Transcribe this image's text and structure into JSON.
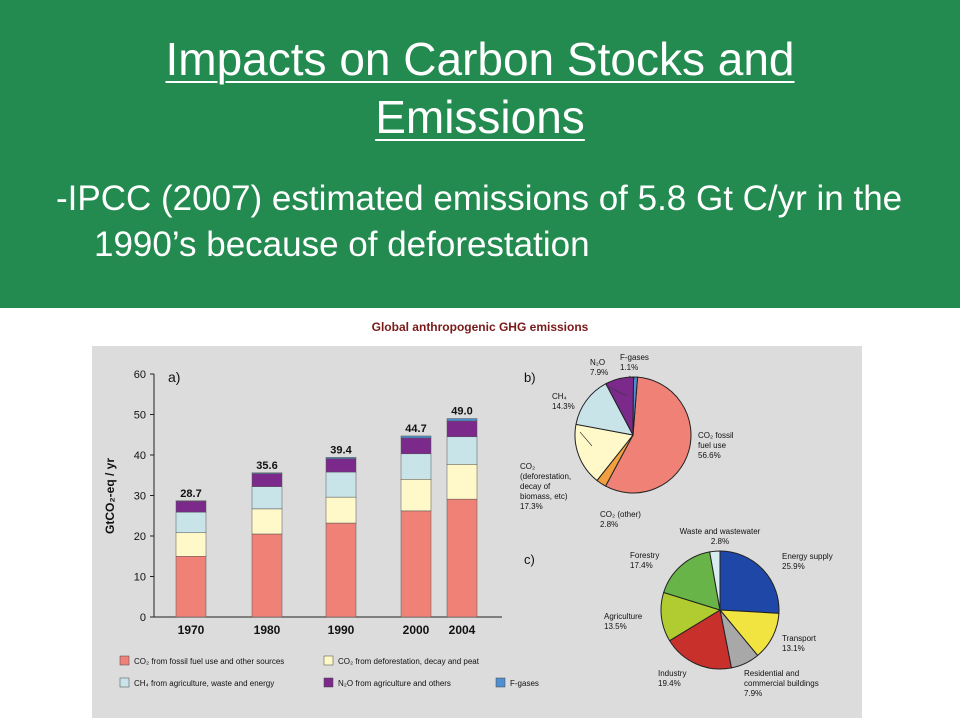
{
  "slide": {
    "title_line1": "Impacts on Carbon Stocks and",
    "title_line2": "Emissions",
    "bullet": "-IPCC (2007) estimated emissions of 5.8 Gt C/yr in the 1990’s because of deforestation"
  },
  "figure_title": "Global anthropogenic GHG emissions",
  "colors": {
    "fossil": "#ef8176",
    "deforest": "#fff8c8",
    "ch4": "#c8e4e8",
    "n2o": "#7b2a8c",
    "fgas": "#4f8fd0",
    "energy": "#1f47a8",
    "transport": "#f2e440",
    "buildings": "#a8a8a8",
    "industry": "#c8302c",
    "agriculture": "#b0cc30",
    "forestry": "#68b448",
    "waste": "#d8ecf0"
  },
  "chart_data": [
    {
      "type": "bar",
      "panel_label": "a)",
      "ylabel": "GtCO₂-eq / yr",
      "ylim": [
        0,
        60
      ],
      "yticks": [
        "0",
        "10",
        "20",
        "30",
        "40",
        "50",
        "60"
      ],
      "categories": [
        "1970",
        "1980",
        "1990",
        "2000",
        "2004"
      ],
      "series": [
        {
          "name": "CO₂ from fossil fuel use and other sources",
          "values": [
            15,
            20.5,
            23.2,
            26.2,
            29.1
          ]
        },
        {
          "name": "CO₂ from deforestation, decay and peat",
          "values": [
            5.8,
            6.2,
            6.4,
            7.8,
            8.6
          ]
        },
        {
          "name": "CH₄ from agriculture, waste and energy",
          "values": [
            5.1,
            5.5,
            6.2,
            6.3,
            6.8
          ]
        },
        {
          "name": "N₂O from agriculture and others",
          "values": [
            2.7,
            3.2,
            3.3,
            3.9,
            3.9
          ]
        },
        {
          "name": "F-gases",
          "values": [
            0.1,
            0.2,
            0.3,
            0.5,
            0.6
          ]
        }
      ],
      "totals": [
        "28.7",
        "35.6",
        "39.4",
        "44.7",
        "49.0"
      ]
    },
    {
      "type": "pie",
      "panel_label": "b)",
      "slices": [
        {
          "label_lines": [
            "CO₂ fossil",
            "fuel use",
            "56.6%"
          ],
          "value": 56.6,
          "color_key": "fossil"
        },
        {
          "label_lines": [
            "CO₂ (other)",
            "2.8%"
          ],
          "value": 2.8,
          "color_key": "fossil_dark"
        },
        {
          "label_lines": [
            "CO₂",
            "(deforestation,",
            "decay of",
            "biomass, etc)",
            "17.3%"
          ],
          "value": 17.3,
          "color_key": "deforest"
        },
        {
          "label_lines": [
            "CH₄",
            "14.3%"
          ],
          "value": 14.3,
          "color_key": "ch4"
        },
        {
          "label_lines": [
            "N₂O",
            "7.9%"
          ],
          "value": 7.9,
          "color_key": "n2o"
        },
        {
          "label_lines": [
            "F-gases",
            "1.1%"
          ],
          "value": 1.1,
          "color_key": "fgas"
        }
      ]
    },
    {
      "type": "pie",
      "panel_label": "c)",
      "slices": [
        {
          "label_lines": [
            "Energy supply",
            "25.9%"
          ],
          "value": 25.9,
          "color_key": "energy"
        },
        {
          "label_lines": [
            "Transport",
            "13.1%"
          ],
          "value": 13.1,
          "color_key": "transport"
        },
        {
          "label_lines": [
            "Residential and",
            "commercial buildings",
            "7.9%"
          ],
          "value": 7.9,
          "color_key": "buildings"
        },
        {
          "label_lines": [
            "Industry",
            "19.4%"
          ],
          "value": 19.4,
          "color_key": "industry"
        },
        {
          "label_lines": [
            "Agriculture",
            "13.5%"
          ],
          "value": 13.5,
          "color_key": "agriculture"
        },
        {
          "label_lines": [
            "Forestry",
            "17.4%"
          ],
          "value": 17.4,
          "color_key": "forestry"
        },
        {
          "label_lines": [
            "Waste and wastewater",
            "2.8%"
          ],
          "value": 2.8,
          "color_key": "waste"
        }
      ]
    }
  ]
}
